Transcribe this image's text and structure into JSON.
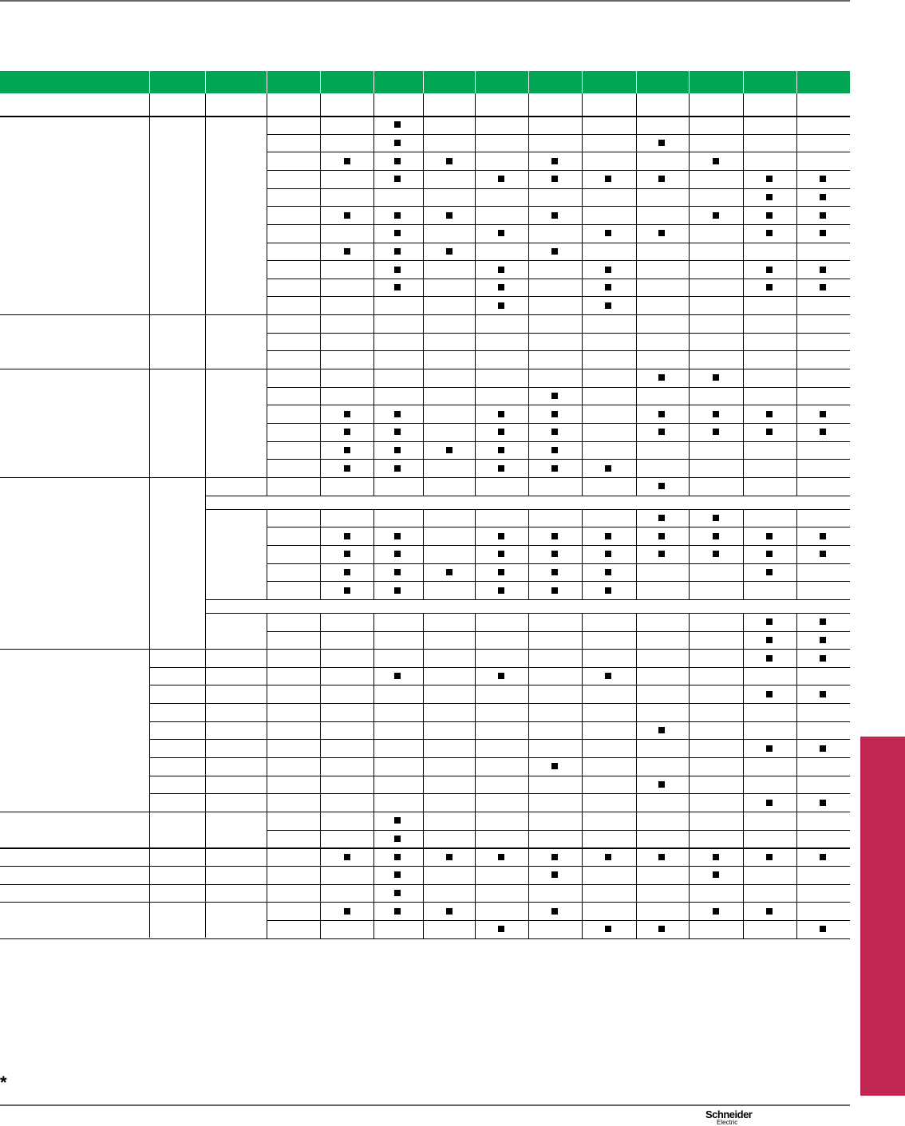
{
  "colors": {
    "header": "#00a651",
    "side_tab": "#c0264f",
    "mark": "#000000"
  },
  "footnote_symbol": "*",
  "logo": {
    "line1": "Schneider",
    "line2": "Electric"
  },
  "table": {
    "mark_icon": "filled-square",
    "groups": [
      {
        "rows": [
          {
            "marks": [
              1
            ]
          },
          {
            "marks": [
              1,
              6
            ]
          },
          {
            "marks": [
              0,
              1,
              2,
              4,
              7
            ]
          },
          {
            "marks": [
              1,
              3,
              4,
              5,
              6,
              8,
              9
            ]
          },
          {
            "marks": [
              8,
              9
            ]
          },
          {
            "marks": [
              0,
              1,
              2,
              4,
              7,
              8,
              9
            ]
          },
          {
            "marks": [
              1,
              3,
              5,
              6,
              8,
              9
            ]
          },
          {
            "marks": [
              0,
              1,
              2,
              4
            ]
          },
          {
            "marks": [
              1,
              3,
              5,
              8,
              9
            ]
          },
          {
            "marks": [
              1,
              3,
              5,
              8,
              9
            ]
          },
          {
            "marks": [
              3,
              5
            ]
          }
        ]
      },
      {
        "rows": [
          {
            "marks": []
          },
          {
            "marks": []
          },
          {
            "marks": []
          }
        ]
      },
      {
        "rows": [
          {
            "marks": [
              6,
              7
            ]
          },
          {
            "marks": [
              4
            ]
          },
          {
            "marks": [
              0,
              1,
              3,
              4,
              6,
              7,
              8,
              9
            ]
          },
          {
            "marks": [
              0,
              1,
              3,
              4,
              6,
              7,
              8,
              9
            ]
          },
          {
            "marks": [
              0,
              1,
              2,
              3,
              4
            ]
          },
          {
            "marks": [
              0,
              1,
              3,
              4,
              5
            ]
          }
        ]
      },
      {
        "rows": [
          {
            "marks": [
              6
            ]
          },
          {
            "span": true
          },
          {
            "marks": [
              6,
              7
            ]
          },
          {
            "marks": [
              0,
              1,
              3,
              4,
              5,
              6,
              7,
              8,
              9
            ]
          },
          {
            "marks": [
              0,
              1,
              3,
              4,
              5,
              6,
              7,
              8,
              9
            ]
          },
          {
            "marks": [
              0,
              1,
              2,
              3,
              4,
              5,
              8
            ]
          },
          {
            "marks": [
              0,
              1,
              3,
              4,
              5
            ]
          },
          {
            "span": true
          },
          {
            "marks": [
              8,
              9
            ]
          },
          {
            "marks": [
              8,
              9
            ]
          }
        ]
      },
      {
        "rows": [
          {
            "marks": [
              8,
              9
            ]
          },
          {
            "marks": [
              1,
              3,
              5
            ]
          },
          {
            "marks": [
              8,
              9
            ]
          },
          {
            "marks": []
          },
          {
            "marks": [
              6
            ]
          },
          {
            "marks": [
              8,
              9
            ]
          },
          {
            "marks": [
              4
            ]
          },
          {
            "marks": [
              6
            ]
          },
          {
            "marks": [
              8,
              9
            ]
          }
        ]
      },
      {
        "rows": [
          {
            "marks": [
              1
            ]
          },
          {
            "marks": [
              1
            ]
          }
        ]
      },
      {
        "rows": [
          {
            "marks": [
              0,
              1,
              2,
              3,
              4,
              5,
              6,
              7,
              8,
              9
            ]
          }
        ]
      },
      {
        "rows": [
          {
            "marks": [
              1,
              4,
              7
            ]
          }
        ]
      },
      {
        "rows": [
          {
            "marks": [
              1
            ]
          }
        ]
      },
      {
        "rows": [
          {
            "marks": [
              0,
              1,
              2,
              4,
              7,
              8
            ]
          },
          {
            "marks": [
              3,
              5,
              6,
              9
            ]
          }
        ]
      }
    ]
  }
}
